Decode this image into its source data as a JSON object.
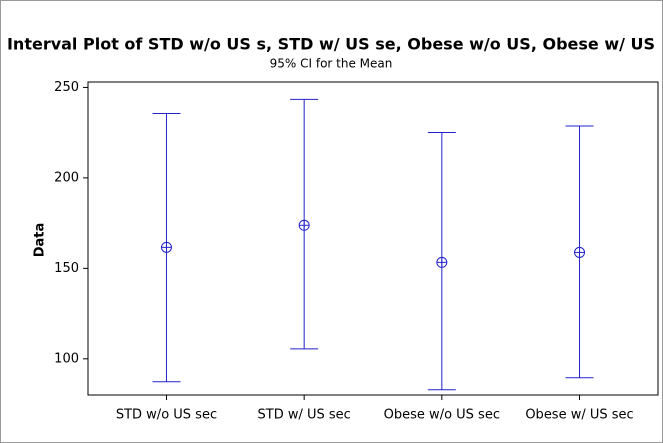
{
  "chart_data": {
    "type": "interval",
    "title": "Interval Plot of STD w/o US s, STD w/ US se, Obese w/o US, Obese w/ US",
    "subtitle": "95% CI for the Mean",
    "y_label": "Data",
    "categories": [
      "STD w/o US sec",
      "STD w/ US sec",
      "Obese w/o US sec",
      "Obese w/ US sec"
    ],
    "values": [
      161.6,
      173.8,
      153.3,
      158.8
    ],
    "lower": [
      87.3,
      105.5,
      82.9,
      89.5
    ],
    "upper": [
      235.6,
      243.4,
      225.1,
      228.7
    ],
    "color": "#2222cc",
    "ylim": [
      80,
      253
    ],
    "yticks": [
      100,
      150,
      200,
      250
    ],
    "grid": false
  }
}
